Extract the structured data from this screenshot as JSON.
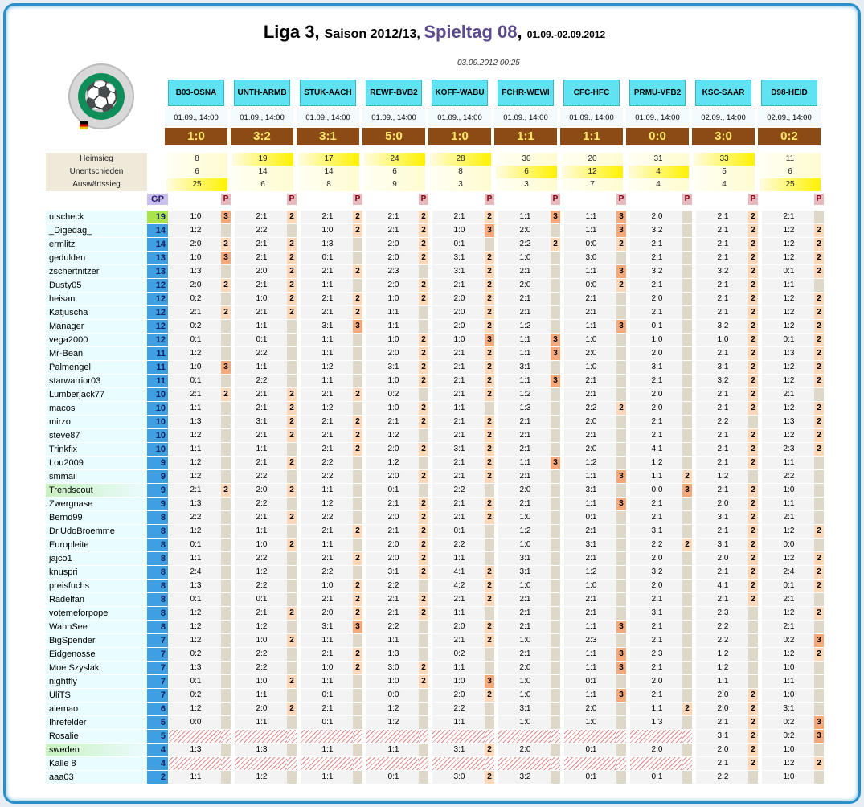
{
  "title": {
    "liga": "Liga 3",
    "saison": "Saison 2012/13",
    "spieltag": "Spieltag 08",
    "dates": "01.09.-02.09.2012"
  },
  "timestamp": "03.09.2012 00:25",
  "gp_label": "GP",
  "p_label": "P",
  "stat_labels": [
    "Heimsieg",
    "Unentschieden",
    "Auswärtssieg"
  ],
  "games": [
    {
      "code": "B03-OSNA",
      "date": "01.09., 14:00",
      "score": "1:0",
      "heim": "8",
      "unent": "6",
      "ausw": "25",
      "hi": 2
    },
    {
      "code": "UNTH-ARMB",
      "date": "01.09., 14:00",
      "score": "3:2",
      "heim": "19",
      "unent": "14",
      "ausw": "6",
      "hi": 0
    },
    {
      "code": "STUK-AACH",
      "date": "01.09., 14:00",
      "score": "3:1",
      "heim": "17",
      "unent": "14",
      "ausw": "8",
      "hi": 0
    },
    {
      "code": "REWF-BVB2",
      "date": "01.09., 14:00",
      "score": "5:0",
      "heim": "24",
      "unent": "6",
      "ausw": "9",
      "hi": 0
    },
    {
      "code": "KOFF-WABU",
      "date": "01.09., 14:00",
      "score": "1:0",
      "heim": "28",
      "unent": "8",
      "ausw": "3",
      "hi": 0
    },
    {
      "code": "FCHR-WEWI",
      "date": "01.09., 14:00",
      "score": "1:1",
      "heim": "30",
      "unent": "6",
      "ausw": "3",
      "hi": 1
    },
    {
      "code": "CFC-HFC",
      "date": "01.09., 14:00",
      "score": "1:1",
      "heim": "20",
      "unent": "12",
      "ausw": "7",
      "hi": 1
    },
    {
      "code": "PRMÜ-VFB2",
      "date": "01.09., 14:00",
      "score": "0:0",
      "heim": "31",
      "unent": "4",
      "ausw": "4",
      "hi": 1
    },
    {
      "code": "KSC-SAAR",
      "date": "02.09., 14:00",
      "score": "3:0",
      "heim": "33",
      "unent": "5",
      "ausw": "4",
      "hi": 0
    },
    {
      "code": "D98-HEID",
      "date": "02.09., 14:00",
      "score": "0:2",
      "heim": "11",
      "unent": "6",
      "ausw": "25",
      "hi": 2
    }
  ],
  "players": [
    {
      "name": "utscheck",
      "gp": "19",
      "tips": [
        "1:0",
        "2:1",
        "2:1",
        "2:1",
        "2:1",
        "1:1",
        "1:1",
        "2:0",
        "2:1",
        "2:1"
      ],
      "p": [
        "3",
        "2",
        "2",
        "2",
        "2",
        "3",
        "3",
        "",
        "2",
        ""
      ]
    },
    {
      "name": "_Digedag_",
      "gp": "14",
      "tips": [
        "1:2",
        "2:2",
        "1:0",
        "2:1",
        "1:0",
        "2:0",
        "1:1",
        "3:2",
        "2:1",
        "1:2"
      ],
      "p": [
        "",
        "",
        "2",
        "2",
        "3",
        "",
        "3",
        "",
        "2",
        "2"
      ]
    },
    {
      "name": "ermlitz",
      "gp": "14",
      "tips": [
        "2:0",
        "2:1",
        "1:3",
        "2:0",
        "0:1",
        "2:2",
        "0:0",
        "2:1",
        "2:1",
        "1:2"
      ],
      "p": [
        "2",
        "2",
        "",
        "2",
        "",
        "2",
        "2",
        "",
        "2",
        "2"
      ]
    },
    {
      "name": "gedulden",
      "gp": "13",
      "tips": [
        "1:0",
        "2:1",
        "0:1",
        "2:0",
        "3:1",
        "1:0",
        "3:0",
        "2:1",
        "2:1",
        "1:2"
      ],
      "p": [
        "3",
        "2",
        "",
        "2",
        "2",
        "",
        "",
        "",
        "2",
        "2"
      ]
    },
    {
      "name": "zschertnitzer",
      "gp": "13",
      "tips": [
        "1:3",
        "2:0",
        "2:1",
        "2:3",
        "3:1",
        "2:1",
        "1:1",
        "3:2",
        "3:2",
        "0:1"
      ],
      "p": [
        "",
        "2",
        "2",
        "",
        "2",
        "",
        "3",
        "",
        "2",
        "2"
      ]
    },
    {
      "name": "Dusty05",
      "gp": "12",
      "tips": [
        "2:0",
        "2:1",
        "1:1",
        "2:0",
        "2:1",
        "2:0",
        "0:0",
        "2:1",
        "2:1",
        "1:1"
      ],
      "p": [
        "2",
        "2",
        "",
        "2",
        "2",
        "",
        "2",
        "",
        "2",
        ""
      ]
    },
    {
      "name": "heisan",
      "gp": "12",
      "tips": [
        "0:2",
        "1:0",
        "2:1",
        "1:0",
        "2:0",
        "2:1",
        "2:1",
        "2:0",
        "2:1",
        "1:2"
      ],
      "p": [
        "",
        "2",
        "2",
        "2",
        "2",
        "",
        "",
        "",
        "2",
        "2"
      ]
    },
    {
      "name": "Katjuscha",
      "gp": "12",
      "tips": [
        "2:1",
        "2:1",
        "2:1",
        "1:1",
        "2:0",
        "2:1",
        "2:1",
        "2:1",
        "2:1",
        "1:2"
      ],
      "p": [
        "2",
        "2",
        "2",
        "",
        "2",
        "",
        "",
        "",
        "2",
        "2"
      ]
    },
    {
      "name": "Manager",
      "gp": "12",
      "tips": [
        "0:2",
        "1:1",
        "3:1",
        "1:1",
        "2:0",
        "1:2",
        "1:1",
        "0:1",
        "3:2",
        "1:2"
      ],
      "p": [
        "",
        "",
        "3",
        "",
        "2",
        "",
        "3",
        "",
        "2",
        "2"
      ]
    },
    {
      "name": "vega2000",
      "gp": "12",
      "tips": [
        "0:1",
        "0:1",
        "1:1",
        "1:0",
        "1:0",
        "1:1",
        "1:0",
        "1:0",
        "1:0",
        "0:1"
      ],
      "p": [
        "",
        "",
        "",
        "2",
        "3",
        "3",
        "",
        "",
        "2",
        "2"
      ]
    },
    {
      "name": "Mr-Bean",
      "gp": "11",
      "tips": [
        "1:2",
        "2:2",
        "1:1",
        "2:0",
        "2:1",
        "1:1",
        "2:0",
        "2:0",
        "2:1",
        "1:3"
      ],
      "p": [
        "",
        "",
        "",
        "2",
        "2",
        "3",
        "",
        "",
        "2",
        "2"
      ]
    },
    {
      "name": "Palmengel",
      "gp": "11",
      "tips": [
        "1:0",
        "1:1",
        "1:2",
        "3:1",
        "2:1",
        "3:1",
        "1:0",
        "3:1",
        "3:1",
        "1:2"
      ],
      "p": [
        "3",
        "",
        "",
        "2",
        "2",
        "",
        "",
        "",
        "2",
        "2"
      ]
    },
    {
      "name": "starwarrior03",
      "gp": "11",
      "tips": [
        "0:1",
        "2:2",
        "1:1",
        "1:0",
        "2:1",
        "1:1",
        "2:1",
        "2:1",
        "3:2",
        "1:2"
      ],
      "p": [
        "",
        "",
        "",
        "2",
        "2",
        "3",
        "",
        "",
        "2",
        "2"
      ]
    },
    {
      "name": "Lumberjack77",
      "gp": "10",
      "tips": [
        "2:1",
        "2:1",
        "2:1",
        "0:2",
        "2:1",
        "1:2",
        "2:1",
        "2:0",
        "2:1",
        "2:1"
      ],
      "p": [
        "2",
        "2",
        "2",
        "",
        "2",
        "",
        "",
        "",
        "2",
        ""
      ]
    },
    {
      "name": "macos",
      "gp": "10",
      "tips": [
        "1:1",
        "2:1",
        "1:2",
        "1:0",
        "1:1",
        "1:3",
        "2:2",
        "2:0",
        "2:1",
        "1:2"
      ],
      "p": [
        "",
        "2",
        "",
        "2",
        "",
        "",
        "2",
        "",
        "2",
        "2"
      ]
    },
    {
      "name": "mirzo",
      "gp": "10",
      "tips": [
        "1:3",
        "3:1",
        "2:1",
        "2:1",
        "2:1",
        "2:1",
        "2:0",
        "2:1",
        "2:2",
        "1:3"
      ],
      "p": [
        "",
        "2",
        "2",
        "2",
        "2",
        "",
        "",
        "",
        "",
        "2"
      ]
    },
    {
      "name": "steve87",
      "gp": "10",
      "tips": [
        "1:2",
        "2:1",
        "2:1",
        "1:2",
        "2:1",
        "2:1",
        "2:1",
        "2:1",
        "2:1",
        "1:2"
      ],
      "p": [
        "",
        "2",
        "2",
        "",
        "2",
        "",
        "",
        "",
        "2",
        "2"
      ]
    },
    {
      "name": "Trinkfix",
      "gp": "10",
      "tips": [
        "1:1",
        "1:1",
        "2:1",
        "2:0",
        "3:1",
        "2:1",
        "2:0",
        "4:1",
        "2:1",
        "2:3"
      ],
      "p": [
        "",
        "",
        "2",
        "2",
        "2",
        "",
        "",
        "",
        "2",
        "2"
      ]
    },
    {
      "name": "Lou2009",
      "gp": "9",
      "tips": [
        "1:2",
        "2:1",
        "2:2",
        "1:2",
        "2:1",
        "1:1",
        "1:2",
        "1:2",
        "2:1",
        "1:1"
      ],
      "p": [
        "",
        "2",
        "",
        "",
        "2",
        "3",
        "",
        "",
        "2",
        ""
      ]
    },
    {
      "name": "smmail",
      "gp": "9",
      "tips": [
        "1:2",
        "2:2",
        "2:2",
        "2:0",
        "2:1",
        "2:1",
        "1:1",
        "1:1",
        "1:2",
        "2:2"
      ],
      "p": [
        "",
        "",
        "",
        "2",
        "2",
        "",
        "3",
        "2",
        "",
        ""
      ]
    },
    {
      "name": "Trendscout",
      "gp": "9",
      "tips": [
        "2:1",
        "2:0",
        "1:1",
        "0:1",
        "2:2",
        "2:0",
        "3:1",
        "0:0",
        "2:1",
        "1:0"
      ],
      "p": [
        "2",
        "2",
        "",
        "",
        "",
        "",
        "",
        "3",
        "2",
        ""
      ]
    },
    {
      "name": "Zwergnase",
      "gp": "9",
      "tips": [
        "1:3",
        "2:2",
        "1:2",
        "2:1",
        "2:1",
        "2:1",
        "1:1",
        "2:1",
        "2:0",
        "1:1"
      ],
      "p": [
        "",
        "",
        "",
        "2",
        "2",
        "",
        "3",
        "",
        "2",
        ""
      ]
    },
    {
      "name": "Bernd99",
      "gp": "8",
      "tips": [
        "2:2",
        "2:1",
        "2:2",
        "2:0",
        "2:1",
        "1:0",
        "0:1",
        "2:1",
        "3:1",
        "2:1"
      ],
      "p": [
        "",
        "2",
        "",
        "2",
        "2",
        "",
        "",
        "",
        "2",
        ""
      ]
    },
    {
      "name": "Dr.UdoBroemme",
      "gp": "8",
      "tips": [
        "1:2",
        "1:1",
        "2:1",
        "2:1",
        "0:1",
        "1:2",
        "2:1",
        "3:1",
        "2:1",
        "1:2"
      ],
      "p": [
        "",
        "",
        "2",
        "2",
        "",
        "",
        "",
        "",
        "2",
        "2"
      ]
    },
    {
      "name": "Europleite",
      "gp": "8",
      "tips": [
        "0:1",
        "1:0",
        "1:1",
        "2:0",
        "2:2",
        "1:0",
        "3:1",
        "2:2",
        "3:1",
        "0:0"
      ],
      "p": [
        "",
        "2",
        "",
        "2",
        "",
        "",
        "",
        "2",
        "2",
        ""
      ]
    },
    {
      "name": "jajco1",
      "gp": "8",
      "tips": [
        "1:1",
        "2:2",
        "2:1",
        "2:0",
        "1:1",
        "3:1",
        "2:1",
        "2:0",
        "2:0",
        "1:2"
      ],
      "p": [
        "",
        "",
        "2",
        "2",
        "",
        "",
        "",
        "",
        "2",
        "2"
      ]
    },
    {
      "name": "knuspri",
      "gp": "8",
      "tips": [
        "2:4",
        "1:2",
        "2:2",
        "3:1",
        "4:1",
        "3:1",
        "1:2",
        "3:2",
        "2:1",
        "2:4"
      ],
      "p": [
        "",
        "",
        "",
        "2",
        "2",
        "",
        "",
        "",
        "2",
        "2"
      ]
    },
    {
      "name": "preisfuchs",
      "gp": "8",
      "tips": [
        "1:3",
        "2:2",
        "1:0",
        "2:2",
        "4:2",
        "1:0",
        "1:0",
        "2:0",
        "4:1",
        "0:1"
      ],
      "p": [
        "",
        "",
        "2",
        "",
        "2",
        "",
        "",
        "",
        "2",
        "2"
      ]
    },
    {
      "name": "Radelfan",
      "gp": "8",
      "tips": [
        "0:1",
        "0:1",
        "2:1",
        "2:1",
        "2:1",
        "2:1",
        "2:1",
        "2:1",
        "2:1",
        "2:1"
      ],
      "p": [
        "",
        "",
        "2",
        "2",
        "2",
        "",
        "",
        "",
        "2",
        ""
      ]
    },
    {
      "name": "votemeforpope",
      "gp": "8",
      "tips": [
        "1:2",
        "2:1",
        "2:0",
        "2:1",
        "1:1",
        "2:1",
        "2:1",
        "3:1",
        "2:3",
        "1:2"
      ],
      "p": [
        "",
        "2",
        "2",
        "2",
        "",
        "",
        "",
        "",
        "",
        "2"
      ]
    },
    {
      "name": "WahnSee",
      "gp": "8",
      "tips": [
        "1:2",
        "1:2",
        "3:1",
        "2:2",
        "2:0",
        "2:1",
        "1:1",
        "2:1",
        "2:2",
        "2:1"
      ],
      "p": [
        "",
        "",
        "3",
        "",
        "2",
        "",
        "3",
        "",
        "",
        ""
      ]
    },
    {
      "name": "BigSpender",
      "gp": "7",
      "tips": [
        "1:2",
        "1:0",
        "1:1",
        "1:1",
        "2:1",
        "1:0",
        "2:3",
        "2:1",
        "2:2",
        "0:2"
      ],
      "p": [
        "",
        "2",
        "",
        "",
        "2",
        "",
        "",
        "",
        "",
        "3"
      ]
    },
    {
      "name": "Eidgenosse",
      "gp": "7",
      "tips": [
        "0:2",
        "2:2",
        "2:1",
        "1:3",
        "0:2",
        "2:1",
        "1:1",
        "2:3",
        "1:2",
        "1:2"
      ],
      "p": [
        "",
        "",
        "2",
        "",
        "",
        "",
        "3",
        "",
        "",
        "2"
      ]
    },
    {
      "name": "Moe Szyslak",
      "gp": "7",
      "tips": [
        "1:3",
        "2:2",
        "1:0",
        "3:0",
        "1:1",
        "2:0",
        "1:1",
        "2:1",
        "1:2",
        "1:0"
      ],
      "p": [
        "",
        "",
        "2",
        "2",
        "",
        "",
        "3",
        "",
        "",
        ""
      ]
    },
    {
      "name": "nightfly",
      "gp": "7",
      "tips": [
        "0:1",
        "1:0",
        "1:1",
        "1:0",
        "1:0",
        "1:0",
        "0:1",
        "2:0",
        "1:1",
        "1:1"
      ],
      "p": [
        "",
        "2",
        "",
        "2",
        "3",
        "",
        "",
        "",
        "",
        ""
      ]
    },
    {
      "name": "UliTS",
      "gp": "7",
      "tips": [
        "0:2",
        "1:1",
        "0:1",
        "0:0",
        "2:0",
        "1:0",
        "1:1",
        "2:1",
        "2:0",
        "1:0"
      ],
      "p": [
        "",
        "",
        "",
        "",
        "2",
        "",
        "3",
        "",
        "2",
        ""
      ]
    },
    {
      "name": "alemao",
      "gp": "6",
      "tips": [
        "1:2",
        "2:0",
        "2:1",
        "1:2",
        "2:2",
        "3:1",
        "2:0",
        "1:1",
        "2:0",
        "3:1"
      ],
      "p": [
        "",
        "2",
        "",
        "",
        "",
        "",
        "",
        "2",
        "2",
        ""
      ]
    },
    {
      "name": "Ihrefelder",
      "gp": "5",
      "tips": [
        "0:0",
        "1:1",
        "0:1",
        "1:2",
        "1:1",
        "1:0",
        "1:0",
        "1:3",
        "2:1",
        "0:2"
      ],
      "p": [
        "",
        "",
        "",
        "",
        "",
        "",
        "",
        "",
        "2",
        "3"
      ]
    },
    {
      "name": "Rosalie",
      "gp": "5",
      "tips": [
        "",
        "",
        "",
        "",
        "",
        "",
        "",
        "",
        "3:1",
        "0:2"
      ],
      "p": [
        "",
        "",
        "",
        "",
        "",
        "",
        "",
        "",
        "2",
        "3"
      ],
      "dis": true
    },
    {
      "name": "sweden",
      "gp": "4",
      "tips": [
        "1:3",
        "1:3",
        "1:1",
        "1:1",
        "3:1",
        "2:0",
        "0:1",
        "2:0",
        "2:0",
        "1:0"
      ],
      "p": [
        "",
        "",
        "",
        "",
        "2",
        "",
        "",
        "",
        "2",
        ""
      ],
      "light": true
    },
    {
      "name": "Kalle 8",
      "gp": "4",
      "tips": [
        "",
        "",
        "",
        "",
        "",
        "",
        "",
        "",
        "2:1",
        "1:2"
      ],
      "p": [
        "",
        "",
        "",
        "",
        "",
        "",
        "",
        "",
        "2",
        "2"
      ],
      "dis": true
    },
    {
      "name": "aaa03",
      "gp": "2",
      "tips": [
        "1:1",
        "1:2",
        "1:1",
        "0:1",
        "3:0",
        "3:2",
        "0:1",
        "0:1",
        "2:2",
        "1:0"
      ],
      "p": [
        "",
        "",
        "",
        "",
        "2",
        "",
        "",
        "",
        "",
        ""
      ]
    }
  ]
}
